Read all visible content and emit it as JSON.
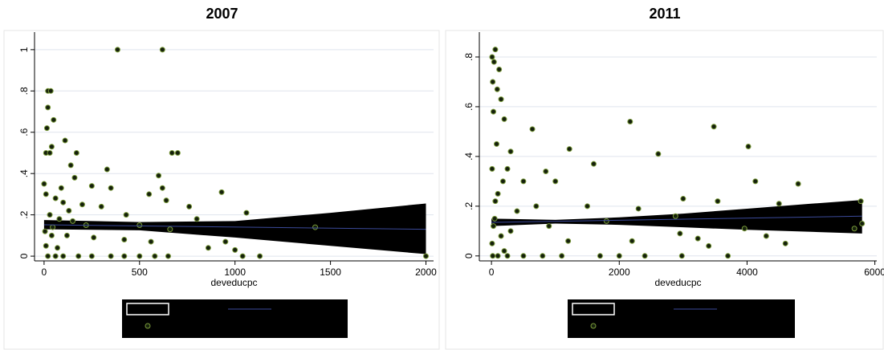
{
  "chart_data": [
    {
      "type": "scatter",
      "title": "2007",
      "xlabel": "deveducpc",
      "x": [
        385,
        620,
        20,
        35,
        20,
        50,
        15,
        110,
        40,
        10,
        30,
        170,
        670,
        700,
        330,
        140,
        600,
        930,
        250,
        350,
        620,
        550,
        640,
        10,
        60,
        100,
        200,
        300,
        760,
        1060,
        800,
        430,
        30,
        80,
        150,
        220,
        500,
        1420,
        660,
        5,
        40,
        120,
        260,
        420,
        560,
        950,
        860,
        1000,
        10,
        70,
        20,
        60,
        100,
        180,
        250,
        350,
        420,
        500,
        580,
        650,
        1040,
        1130,
        2000,
        0,
        90,
        160,
        45,
        130
      ],
      "values": [
        1,
        1,
        0.8,
        0.8,
        0.72,
        0.66,
        0.62,
        0.56,
        0.53,
        0.5,
        0.5,
        0.5,
        0.5,
        0.5,
        0.42,
        0.44,
        0.39,
        0.31,
        0.34,
        0.33,
        0.33,
        0.3,
        0.27,
        0.3,
        0.28,
        0.26,
        0.25,
        0.24,
        0.24,
        0.21,
        0.18,
        0.2,
        0.2,
        0.18,
        0.17,
        0.15,
        0.15,
        0.14,
        0.13,
        0.12,
        0.1,
        0.1,
        0.09,
        0.08,
        0.07,
        0.07,
        0.04,
        0.03,
        0.05,
        0.04,
        0,
        0,
        0,
        0,
        0,
        0,
        0,
        0,
        0,
        0,
        0,
        0,
        0,
        0.35,
        0.33,
        0.38,
        0.14,
        0.22
      ],
      "point_color": "#15200c",
      "point_edge": "#7a9a3a",
      "fit": {
        "x": [
          0,
          2000
        ],
        "values": [
          0.152,
          0.13
        ],
        "color": "#3b4a9a"
      },
      "ci": {
        "x": [
          0,
          500,
          1000,
          1500,
          2000
        ],
        "lower": [
          0.13,
          0.125,
          0.09,
          0.05,
          0.01
        ],
        "upper": [
          0.175,
          0.165,
          0.17,
          0.21,
          0.255
        ],
        "color": "#000000"
      },
      "xlim": [
        -50,
        2040
      ],
      "ylim": [
        -0.023,
        1.085
      ],
      "xticks": [
        0,
        500,
        1000,
        1500,
        2000
      ],
      "yticks": [
        0,
        {
          "value": 0.2,
          "label": ".2"
        },
        {
          "value": 0.4,
          "label": ".4"
        },
        {
          "value": 0.6,
          "label": ".6"
        },
        {
          "value": 0.8,
          "label": ".8"
        },
        1
      ],
      "grid": true,
      "legend_background": "#000000"
    },
    {
      "type": "scatter",
      "title": "2011",
      "xlabel": "deveducpc",
      "x": [
        60,
        10,
        40,
        120,
        90,
        20,
        150,
        30,
        200,
        640,
        2170,
        3480,
        4020,
        80,
        300,
        1220,
        2610,
        1600,
        4130,
        4800,
        850,
        1000,
        500,
        250,
        10,
        3000,
        3540,
        4500,
        2300,
        5780,
        1500,
        700,
        100,
        50,
        400,
        1800,
        2880,
        3960,
        5680,
        5800,
        900,
        2950,
        3230,
        4300,
        3400,
        4600,
        2200,
        1200,
        10,
        150,
        300,
        20,
        100,
        250,
        500,
        800,
        1100,
        1700,
        2000,
        2400,
        2980,
        3700,
        200,
        60,
        30,
        180
      ],
      "values": [
        0.83,
        0.8,
        0.78,
        0.75,
        0.67,
        0.7,
        0.63,
        0.58,
        0.55,
        0.51,
        0.54,
        0.52,
        0.44,
        0.45,
        0.42,
        0.43,
        0.41,
        0.37,
        0.3,
        0.29,
        0.34,
        0.3,
        0.3,
        0.35,
        0.35,
        0.23,
        0.22,
        0.21,
        0.19,
        0.22,
        0.2,
        0.2,
        0.25,
        0.15,
        0.18,
        0.14,
        0.16,
        0.11,
        0.11,
        0.13,
        0.12,
        0.09,
        0.07,
        0.08,
        0.04,
        0.05,
        0.06,
        0.06,
        0.05,
        0.08,
        0.1,
        0,
        0,
        0,
        0,
        0,
        0,
        0,
        0,
        0,
        0,
        0,
        0.02,
        0.22,
        0.12,
        0.3
      ],
      "point_color": "#15200c",
      "point_edge": "#7a9a3a",
      "fit": {
        "x": [
          0,
          5800
        ],
        "values": [
          0.135,
          0.16
        ],
        "color": "#3b4a9a"
      },
      "ci": {
        "x": [
          0,
          1000,
          2000,
          3000,
          4000,
          5000,
          5800
        ],
        "lower": [
          0.12,
          0.13,
          0.125,
          0.115,
          0.105,
          0.097,
          0.09
        ],
        "upper": [
          0.15,
          0.145,
          0.155,
          0.17,
          0.19,
          0.21,
          0.225
        ],
        "color": "#000000"
      },
      "xlim": [
        -190,
        6030
      ],
      "ylim": [
        -0.02,
        0.9
      ],
      "xticks": [
        0,
        2000,
        4000,
        6000
      ],
      "yticks": [
        0,
        {
          "value": 0.2,
          "label": ".2"
        },
        {
          "value": 0.4,
          "label": ".4"
        },
        {
          "value": 0.6,
          "label": ".6"
        },
        {
          "value": 0.8,
          "label": ".8"
        }
      ],
      "grid": true,
      "legend_background": "#000000"
    }
  ]
}
